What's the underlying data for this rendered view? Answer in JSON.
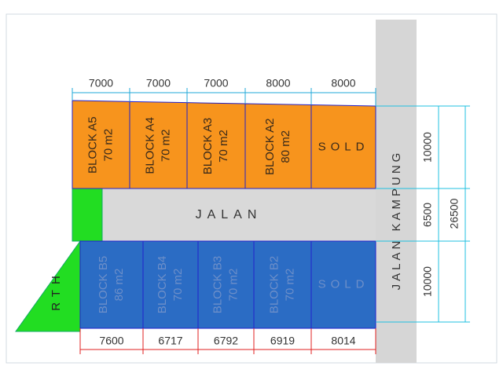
{
  "top_blocks": [
    {
      "name": "BLOCK A5",
      "area": "70 m2"
    },
    {
      "name": "BLOCK A4",
      "area": "70 m2"
    },
    {
      "name": "BLOCK A3",
      "area": "70 m2"
    },
    {
      "name": "BLOCK A2",
      "area": "80 m2"
    },
    {
      "name": "SOLD"
    }
  ],
  "bottom_blocks": [
    {
      "name": "BLOCK B5",
      "area": "86 m2"
    },
    {
      "name": "BLOCK B4",
      "area": "70 m2"
    },
    {
      "name": "BLOCK B3",
      "area": "70 m2"
    },
    {
      "name": "BLOCK B2",
      "area": "70 m2"
    },
    {
      "name": "SOLD"
    }
  ],
  "top_dimensions": [
    7000,
    7000,
    7000,
    8000,
    8000
  ],
  "bottom_dimensions": [
    7600,
    6717,
    6792,
    6919,
    8014
  ],
  "side_dimensions": [
    10000,
    6500,
    10000
  ],
  "total_dimension": 26500,
  "road_label": "JALAN",
  "main_road_label": "JALAN KAMPUNG",
  "green_label": "RTH"
}
